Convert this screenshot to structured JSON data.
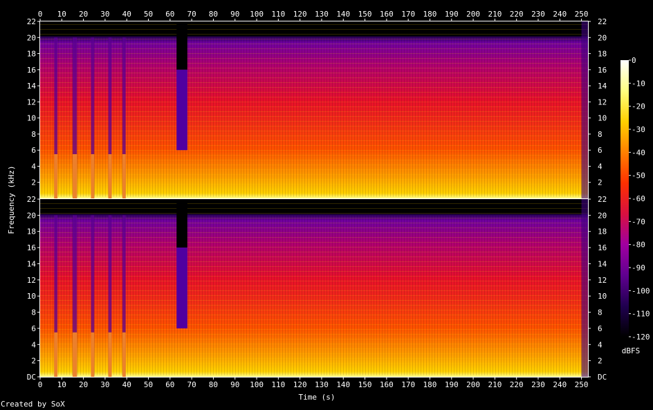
{
  "chart_data": {
    "type": "heatmap",
    "xlabel": "Time (s)",
    "ylabel": "Frequency (kHz)",
    "x_ticks": [
      0,
      10,
      20,
      30,
      40,
      50,
      60,
      70,
      80,
      90,
      100,
      110,
      120,
      130,
      140,
      150,
      160,
      170,
      180,
      190,
      200,
      210,
      220,
      230,
      240,
      250
    ],
    "xlim": [
      0,
      253
    ],
    "y_ticks": [
      "DC",
      "2",
      "4",
      "6",
      "8",
      "10",
      "12",
      "14",
      "16",
      "18",
      "20",
      "22"
    ],
    "ylim": [
      0,
      22
    ],
    "channels": 2,
    "colorbar": {
      "label": "dBFS",
      "ticks": [
        0,
        -10,
        -20,
        -30,
        -40,
        -50,
        -60,
        -70,
        -80,
        -90,
        -100,
        -110,
        -120
      ],
      "range": [
        -120,
        0
      ],
      "colormap": [
        "#000000",
        "#200050",
        "#600090",
        "#a000a0",
        "#d81040",
        "#ff3000",
        "#ff8000",
        "#ffd000",
        "#ffff80",
        "#ffffff"
      ]
    },
    "features": {
      "intro_burst_starts_s": [
        0,
        8,
        17,
        25,
        33
      ],
      "intro_burst_low_s": [
        6.5,
        15,
        23.5,
        31.5,
        38
      ],
      "bandwidth_khz": 20,
      "lowpass_segment_s": [
        63,
        68
      ],
      "lowpass_segment_cutoff_khz": 16
    }
  },
  "footer": {
    "credit": "Created by SoX"
  }
}
